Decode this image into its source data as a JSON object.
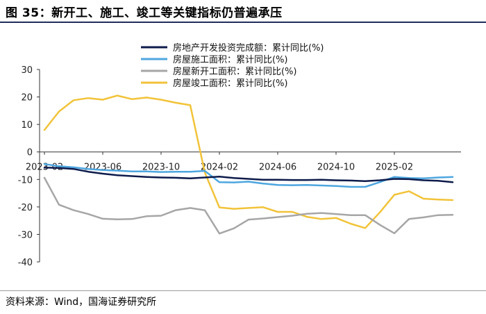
{
  "figure": {
    "title": "图 35：新开工、施工、竣工等关键指标仍普遍承压",
    "source": "资料来源：Wind，国海证券研究所"
  },
  "chart_data": {
    "type": "line",
    "title": "",
    "xlabel": "",
    "ylabel": "",
    "ylim": [
      -40,
      30
    ],
    "yticks": [
      30,
      20,
      10,
      0,
      -10,
      -20,
      -30,
      -40
    ],
    "grid": false,
    "legend_position": "top-right",
    "x": [
      "2023-02",
      "2023-03",
      "2023-04",
      "2023-05",
      "2023-06",
      "2023-07",
      "2023-08",
      "2023-09",
      "2023-10",
      "2023-11",
      "2023-12",
      "2024-01",
      "2024-02",
      "2024-03",
      "2024-04",
      "2024-05",
      "2024-06",
      "2024-07",
      "2024-08",
      "2024-09",
      "2024-10",
      "2024-11",
      "2024-12",
      "2025-01",
      "2025-02",
      "2025-03",
      "2025-04",
      "2025-05",
      "2025-06"
    ],
    "xtick_labels": [
      "2023-02",
      "2023-06",
      "2023-10",
      "2024-02",
      "2024-06",
      "2024-10",
      "2025-02"
    ],
    "series": [
      {
        "name": "房地产开发投资完成额：累计同比(%)",
        "color": "#0d1b4b",
        "width": 2.5,
        "values": [
          -5.7,
          -5.8,
          -6.2,
          -7.2,
          -7.9,
          -8.5,
          -8.8,
          -9.1,
          -9.3,
          -9.4,
          -9.6,
          -9.3,
          -9.0,
          -9.5,
          -9.8,
          -10.1,
          -10.1,
          -10.2,
          -10.2,
          -10.1,
          -10.3,
          -10.4,
          -10.6,
          -10.3,
          -9.8,
          -9.9,
          -10.3,
          -10.5,
          -11.0
        ]
      },
      {
        "name": "房屋施工面积：累计同比(%)",
        "color": "#4da6df",
        "width": 2.5,
        "values": [
          -4.4,
          -5.2,
          -5.6,
          -6.2,
          -6.6,
          -6.8,
          -7.1,
          -7.1,
          -7.3,
          -7.2,
          -7.2,
          -6.9,
          -11.0,
          -11.1,
          -10.8,
          -11.5,
          -12.0,
          -12.1,
          -12.0,
          -12.2,
          -12.4,
          -12.7,
          -12.7,
          -11.0,
          -9.1,
          -9.5,
          -9.6,
          -9.3,
          -9.1
        ]
      },
      {
        "name": "房屋新开工面积：累计同比(%)",
        "color": "#a6a6a6",
        "width": 2.5,
        "values": [
          -9.4,
          -19.2,
          -21.2,
          -22.6,
          -24.3,
          -24.5,
          -24.4,
          -23.4,
          -23.2,
          -21.2,
          -20.4,
          -21.2,
          -29.7,
          -27.8,
          -24.6,
          -24.2,
          -23.7,
          -23.2,
          -22.5,
          -22.2,
          -22.6,
          -23.0,
          -23.0,
          -26.5,
          -29.6,
          -24.4,
          -23.8,
          -23.0,
          -22.9
        ]
      },
      {
        "name": "房屋竣工面积：累计同比(%)",
        "color": "#f2c339",
        "width": 2.5,
        "values": [
          8.0,
          14.7,
          18.8,
          19.6,
          19.0,
          20.5,
          19.2,
          19.8,
          19.0,
          17.9,
          17.0,
          -7.5,
          -20.2,
          -20.7,
          -20.4,
          -20.1,
          -21.8,
          -21.8,
          -23.6,
          -24.4,
          -24.0,
          -26.1,
          -27.7,
          -22.0,
          -15.6,
          -14.3,
          -17.0,
          -17.3,
          -17.5
        ]
      }
    ]
  }
}
